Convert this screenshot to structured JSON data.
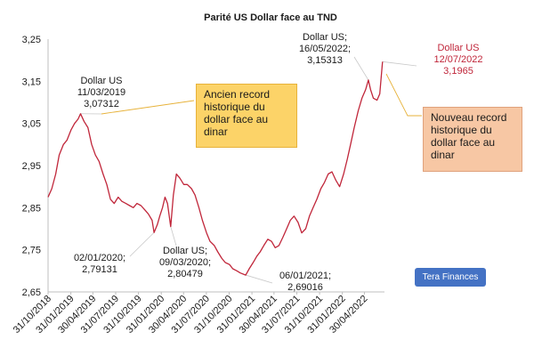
{
  "chart_data": {
    "type": "line",
    "title": "Parité US Dollar face au TND",
    "xlabel": "",
    "ylabel": "",
    "ylim": [
      2.65,
      3.25
    ],
    "yticks": [
      "2,65",
      "2,75",
      "2,85",
      "2,95",
      "3,05",
      "3,15",
      "3,25"
    ],
    "ytick_values": [
      2.65,
      2.75,
      2.85,
      2.95,
      3.05,
      3.15,
      3.25
    ],
    "xlim": [
      "2018-10-31",
      "2022-07-20"
    ],
    "xticks": [
      "31/10/2018",
      "31/01/2019",
      "30/04/2019",
      "31/07/2019",
      "31/10/2019",
      "31/01/2020",
      "30/04/2020",
      "31/07/2020",
      "31/10/2020",
      "31/01/2021",
      "30/04/2021",
      "31/07/2021",
      "31/10/2021",
      "31/01/2022",
      "30/04/2022"
    ],
    "xtick_dates": [
      "2018-10-31",
      "2019-01-31",
      "2019-04-30",
      "2019-07-31",
      "2019-10-31",
      "2020-01-31",
      "2020-04-30",
      "2020-07-31",
      "2020-10-31",
      "2021-01-31",
      "2021-04-30",
      "2021-07-31",
      "2021-10-31",
      "2022-01-31",
      "2022-04-30"
    ],
    "grid": false,
    "line_color": "#c0263a",
    "series": [
      {
        "x": [
          "2018-10-31",
          "2018-11-15",
          "2018-12-01",
          "2018-12-15",
          "2019-01-01",
          "2019-01-15",
          "2019-02-01",
          "2019-02-15",
          "2019-03-01",
          "2019-03-11",
          "2019-03-25",
          "2019-04-10",
          "2019-04-25",
          "2019-05-10",
          "2019-05-25",
          "2019-06-10",
          "2019-06-25",
          "2019-07-10",
          "2019-07-25",
          "2019-08-10",
          "2019-08-25",
          "2019-09-10",
          "2019-09-25",
          "2019-10-10",
          "2019-10-25",
          "2019-11-10",
          "2019-11-25",
          "2019-12-10",
          "2019-12-25",
          "2020-01-02",
          "2020-01-15",
          "2020-01-25",
          "2020-02-05",
          "2020-02-15",
          "2020-02-25",
          "2020-03-09",
          "2020-03-20",
          "2020-04-01",
          "2020-04-15",
          "2020-05-01",
          "2020-05-15",
          "2020-06-01",
          "2020-06-15",
          "2020-07-01",
          "2020-07-15",
          "2020-08-01",
          "2020-08-15",
          "2020-09-01",
          "2020-09-15",
          "2020-10-01",
          "2020-10-15",
          "2020-11-01",
          "2020-11-15",
          "2020-12-01",
          "2020-12-15",
          "2021-01-06",
          "2021-01-20",
          "2021-02-05",
          "2021-02-20",
          "2021-03-05",
          "2021-03-20",
          "2021-04-05",
          "2021-04-20",
          "2021-05-05",
          "2021-05-20",
          "2021-06-05",
          "2021-06-20",
          "2021-07-05",
          "2021-07-20",
          "2021-08-05",
          "2021-08-20",
          "2021-09-05",
          "2021-09-20",
          "2021-10-05",
          "2021-10-20",
          "2021-11-05",
          "2021-11-20",
          "2021-12-05",
          "2021-12-20",
          "2022-01-05",
          "2022-01-20",
          "2022-02-05",
          "2022-02-20",
          "2022-03-05",
          "2022-03-20",
          "2022-04-05",
          "2022-04-20",
          "2022-05-05",
          "2022-05-16",
          "2022-05-25",
          "2022-06-05",
          "2022-06-20",
          "2022-07-01",
          "2022-07-12"
        ],
        "values": [
          2.875,
          2.895,
          2.93,
          2.975,
          3.0,
          3.01,
          3.035,
          3.05,
          3.06,
          3.073,
          3.055,
          3.04,
          3.0,
          2.975,
          2.96,
          2.93,
          2.905,
          2.87,
          2.86,
          2.875,
          2.865,
          2.86,
          2.855,
          2.85,
          2.86,
          2.855,
          2.845,
          2.835,
          2.82,
          2.791,
          2.81,
          2.83,
          2.85,
          2.875,
          2.86,
          2.805,
          2.88,
          2.93,
          2.92,
          2.905,
          2.905,
          2.895,
          2.88,
          2.85,
          2.82,
          2.79,
          2.77,
          2.76,
          2.745,
          2.73,
          2.72,
          2.715,
          2.705,
          2.7,
          2.695,
          2.69,
          2.705,
          2.72,
          2.735,
          2.745,
          2.76,
          2.775,
          2.77,
          2.755,
          2.76,
          2.78,
          2.8,
          2.82,
          2.83,
          2.815,
          2.79,
          2.8,
          2.83,
          2.85,
          2.87,
          2.895,
          2.91,
          2.93,
          2.935,
          2.915,
          2.9,
          2.93,
          2.965,
          3.0,
          3.04,
          3.08,
          3.11,
          3.13,
          3.153,
          3.13,
          3.11,
          3.105,
          3.12,
          3.1965
        ]
      }
    ],
    "annotations": [
      {
        "lines": [
          "Dollar US",
          "11/03/2019",
          "3,07312"
        ],
        "color": "#1a1a1a"
      },
      {
        "lines": [
          "02/01/2020;",
          "2,79131"
        ],
        "color": "#1a1a1a"
      },
      {
        "lines": [
          "Dollar US;",
          "09/03/2020;",
          "2,80479"
        ],
        "color": "#1a1a1a"
      },
      {
        "lines": [
          "06/01/2021;",
          "2,69016"
        ],
        "color": "#1a1a1a"
      },
      {
        "lines": [
          "Dollar US;",
          "16/05/2022;",
          "3,15313"
        ],
        "color": "#1a1a1a"
      },
      {
        "lines": [
          "Dollar US",
          "12/07/2022",
          "3,1965"
        ],
        "color": "#c0263a"
      }
    ]
  },
  "callouts": {
    "old_record": "Ancien record historique du dollar face au dinar",
    "new_record": "Nouveau record historique du dollar face au dinar"
  },
  "watermark": "Tera Finances"
}
